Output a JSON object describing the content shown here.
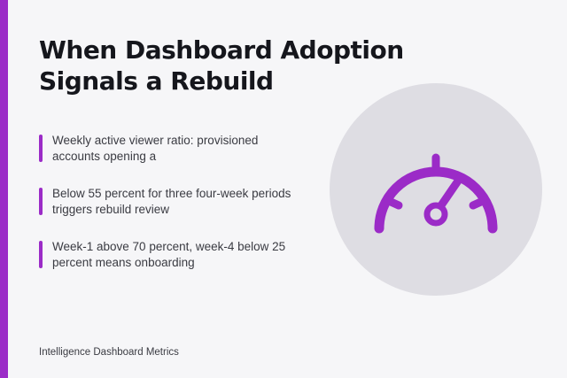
{
  "slide": {
    "title": "When Dashboard Adoption Signals a Rebuild",
    "bullets": [
      {
        "text": "Weekly active viewer ratio: provisioned accounts opening a"
      },
      {
        "text": "Below 55 percent for three four-week periods triggers rebuild review"
      },
      {
        "text": "Week-1 above 70 percent, week-4 below 25 percent means onboarding"
      }
    ],
    "footer": "Intelligence Dashboard Metrics"
  },
  "colors": {
    "accent": "#9b2bc7",
    "background": "#f6f6f8",
    "circle": "#dedde3",
    "title": "#15161c",
    "body_text": "#3a3b42"
  },
  "icons": {
    "gauge": "speedometer-icon"
  }
}
